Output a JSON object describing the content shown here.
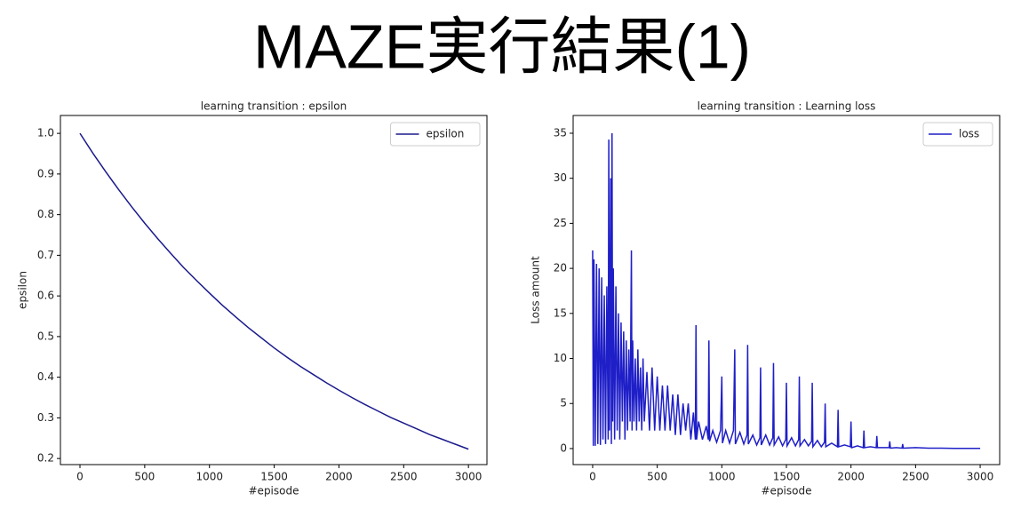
{
  "title": "MAZE実行結果(1)",
  "chart_data": [
    {
      "type": "line",
      "title": "learning transition : epsilon",
      "xlabel": "#episode",
      "ylabel": "epsilon",
      "x": [
        0,
        100,
        200,
        300,
        400,
        500,
        600,
        700,
        800,
        900,
        1000,
        1100,
        1200,
        1300,
        1400,
        1500,
        1600,
        1700,
        1800,
        1900,
        2000,
        2100,
        2200,
        2300,
        2400,
        2500,
        2600,
        2700,
        2800,
        2900,
        3000
      ],
      "series": [
        {
          "name": "epsilon",
          "color": "#1a1a8c",
          "values": [
            1.0,
            0.951,
            0.905,
            0.861,
            0.819,
            0.779,
            0.741,
            0.705,
            0.67,
            0.638,
            0.607,
            0.577,
            0.549,
            0.522,
            0.497,
            0.472,
            0.449,
            0.427,
            0.407,
            0.387,
            0.368,
            0.35,
            0.333,
            0.317,
            0.301,
            0.287,
            0.273,
            0.259,
            0.247,
            0.235,
            0.223
          ]
        }
      ],
      "xlim": [
        -151,
        3143
      ],
      "xticks": [
        0,
        500,
        1000,
        1500,
        2000,
        2500,
        3000
      ],
      "ylim": [
        0.185,
        1.044
      ],
      "yticks": [
        0.2,
        0.3,
        0.4,
        0.5,
        0.6,
        0.7,
        0.8,
        0.9,
        {
          "value": 1.0,
          "label": "1.0"
        }
      ],
      "legend": "upper-right"
    },
    {
      "type": "line",
      "title": "learning transition : Learning loss",
      "xlabel": "#episode",
      "ylabel": "Loss amount",
      "x": [
        0,
        5,
        10,
        20,
        30,
        40,
        50,
        60,
        70,
        80,
        90,
        100,
        110,
        120,
        125,
        130,
        140,
        145,
        150,
        155,
        160,
        170,
        180,
        190,
        200,
        210,
        220,
        230,
        240,
        250,
        260,
        270,
        280,
        290,
        300,
        305,
        310,
        320,
        330,
        340,
        350,
        360,
        370,
        380,
        390,
        400,
        420,
        440,
        460,
        480,
        500,
        520,
        540,
        560,
        580,
        600,
        620,
        640,
        660,
        680,
        700,
        720,
        740,
        760,
        780,
        795,
        800,
        805,
        820,
        850,
        880,
        895,
        900,
        905,
        930,
        960,
        990,
        1000,
        1005,
        1030,
        1060,
        1090,
        1100,
        1105,
        1140,
        1170,
        1195,
        1200,
        1205,
        1240,
        1270,
        1295,
        1300,
        1305,
        1340,
        1370,
        1395,
        1400,
        1405,
        1440,
        1470,
        1495,
        1500,
        1505,
        1540,
        1570,
        1595,
        1600,
        1605,
        1640,
        1670,
        1695,
        1700,
        1705,
        1740,
        1770,
        1795,
        1800,
        1805,
        1850,
        1895,
        1900,
        1905,
        1950,
        1995,
        2000,
        2005,
        2050,
        2095,
        2100,
        2105,
        2150,
        2195,
        2200,
        2205,
        2250,
        2295,
        2300,
        2305,
        2350,
        2395,
        2400,
        2405,
        2500,
        2600,
        2700,
        2800,
        2900,
        3000
      ],
      "series": [
        {
          "name": "loss",
          "color": "#1f1fc8",
          "values": [
            22,
            0.3,
            21,
            0.3,
            20.5,
            0.5,
            20,
            0.4,
            19,
            1,
            17,
            0.5,
            18,
            1,
            34.3,
            2,
            30,
            0.5,
            35,
            3,
            20,
            1,
            18,
            2,
            15,
            1,
            14,
            3,
            13,
            1,
            12,
            2,
            11,
            3,
            22,
            2,
            12,
            3,
            10,
            2,
            11,
            3,
            9,
            2,
            10,
            3,
            8.5,
            2,
            9,
            2,
            8,
            2,
            7,
            2,
            7,
            2,
            6,
            1.5,
            6,
            1.5,
            5,
            2,
            5,
            1,
            4,
            1,
            13.7,
            1,
            3,
            1,
            2.5,
            1,
            12,
            0.8,
            2,
            0.7,
            2,
            8,
            0.6,
            2,
            0.6,
            2,
            11,
            0.5,
            1.8,
            0.5,
            1.5,
            11.5,
            0.5,
            1.5,
            0.4,
            1.2,
            9,
            0.4,
            1.5,
            0.4,
            1.2,
            9.5,
            0.4,
            1.3,
            0.3,
            1,
            7.3,
            0.3,
            1.2,
            0.3,
            1,
            8,
            0.3,
            1,
            0.3,
            0.8,
            7.3,
            0.2,
            0.9,
            0.2,
            0.7,
            5,
            0.2,
            0.6,
            0.2,
            4.3,
            0.2,
            0.4,
            0.2,
            3,
            0.1,
            0.3,
            0.1,
            2,
            0.1,
            0.2,
            0.1,
            1.4,
            0.1,
            0.1,
            0.1,
            0.8,
            0.05,
            0.1,
            0.05,
            0.5,
            0.05,
            0.1,
            0.05,
            0.05,
            0.02,
            0.02,
            0.02
          ]
        }
      ],
      "xlim": [
        -151,
        3151
      ],
      "xticks": [
        0,
        500,
        1000,
        1500,
        2000,
        2500,
        3000
      ],
      "ylim": [
        -1.78,
        36.97
      ],
      "yticks": [
        0,
        5,
        10,
        15,
        20,
        25,
        30,
        35
      ],
      "legend": "upper-right"
    }
  ]
}
